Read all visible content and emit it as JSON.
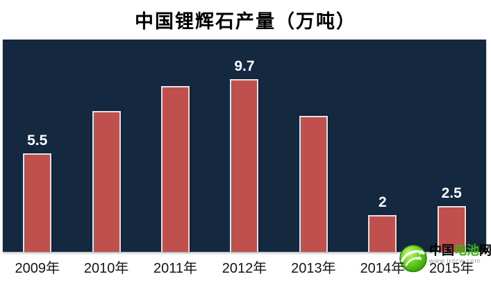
{
  "chart_data": {
    "type": "bar",
    "title": "中国锂辉石产量（万吨）",
    "categories": [
      "2009年",
      "2010年",
      "2011年",
      "2012年",
      "2013年",
      "2014年",
      "2015年"
    ],
    "values": [
      5.5,
      7.9,
      9.3,
      9.7,
      7.6,
      2,
      2.5
    ],
    "data_labels": [
      "5.5",
      "",
      "",
      "9.7",
      "",
      "2",
      "2.5"
    ],
    "xlabel": "",
    "ylabel": "",
    "ylim": [
      0,
      12
    ],
    "grid": false,
    "legend": "none",
    "plot_bg": "#142840",
    "bar_color": "#c0504d",
    "bar_border_color": "#e3e3e3",
    "data_label_color": "#ffffff",
    "axis_text_color": "#151515",
    "title_color": "#000000"
  },
  "watermark": {
    "name_prefix": "中国",
    "name_highlight": "电池",
    "name_suffix": "网",
    "url": "www.itdcw.com",
    "accent_color": "#3db20b"
  }
}
